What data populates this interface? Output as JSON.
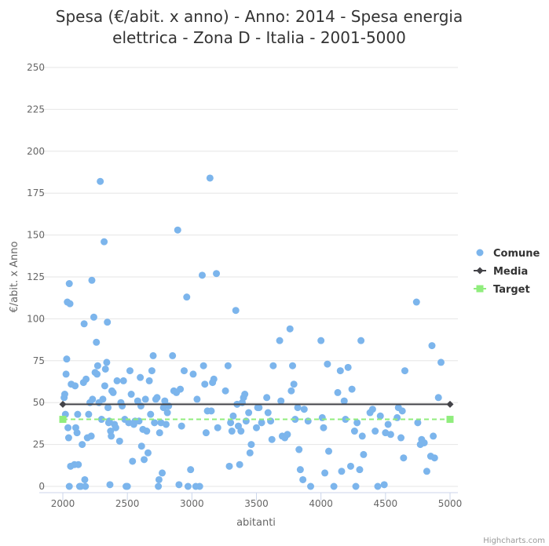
{
  "chart_data": {
    "type": "scatter",
    "title": "Spesa (€/abit. x anno) - Anno: 2014 - Spesa energia elettrica - Zona D - Italia - 2001-5000",
    "x_label": "abitanti",
    "y_label": "€/abit. x Anno",
    "credits": "Highcharts.com",
    "xlim": [
      2000,
      5000
    ],
    "xticks": [
      2000,
      2500,
      3000,
      3500,
      4000,
      4500,
      5000
    ],
    "ylim": [
      0,
      250
    ],
    "yticks": [
      0,
      25,
      50,
      75,
      100,
      125,
      150,
      175,
      200,
      225,
      250
    ],
    "grid": true,
    "legend": "right",
    "series": [
      {
        "name": "Comune",
        "type": "scatter",
        "marker": "circle",
        "color": "#7cb5ec",
        "x": [
          2010,
          2015,
          2020,
          2025,
          2030,
          2035,
          2040,
          2045,
          2050,
          2055,
          2060,
          2065,
          2050,
          2090,
          2095,
          2100,
          2110,
          2115,
          2120,
          2130,
          2140,
          2150,
          2160,
          2165,
          2170,
          2175,
          2180,
          2190,
          2200,
          2210,
          2220,
          2225,
          2230,
          2240,
          2250,
          2260,
          2265,
          2270,
          2280,
          2290,
          2300,
          2310,
          2320,
          2325,
          2330,
          2340,
          2345,
          2350,
          2355,
          2360,
          2365,
          2370,
          2375,
          2380,
          2390,
          2400,
          2410,
          2420,
          2440,
          2450,
          2460,
          2470,
          2480,
          2490,
          2500,
          2510,
          2520,
          2530,
          2540,
          2550,
          2560,
          2580,
          2590,
          2600,
          2605,
          2610,
          2620,
          2630,
          2640,
          2650,
          2660,
          2670,
          2680,
          2690,
          2700,
          2710,
          2720,
          2730,
          2740,
          2745,
          2750,
          2760,
          2770,
          2780,
          2790,
          2800,
          2810,
          2820,
          2850,
          2860,
          2880,
          2890,
          2900,
          2910,
          2920,
          2940,
          2960,
          2970,
          2990,
          3010,
          3030,
          3040,
          3060,
          3080,
          3090,
          3100,
          3110,
          3120,
          3140,
          3150,
          3160,
          3170,
          3190,
          3200,
          3260,
          3280,
          3290,
          3300,
          3310,
          3320,
          3340,
          3350,
          3360,
          3370,
          3380,
          3390,
          3400,
          3410,
          3420,
          3440,
          3450,
          3460,
          3500,
          3510,
          3520,
          3540,
          3580,
          3590,
          3610,
          3620,
          3630,
          3680,
          3690,
          3700,
          3720,
          3740,
          3760,
          3770,
          3780,
          3790,
          3800,
          3820,
          3830,
          3840,
          3860,
          3870,
          3900,
          3920,
          4000,
          4010,
          4020,
          4030,
          4050,
          4060,
          4100,
          4130,
          4150,
          4160,
          4180,
          4190,
          4210,
          4230,
          4240,
          4260,
          4270,
          4280,
          4300,
          4310,
          4320,
          4330,
          4380,
          4400,
          4420,
          4440,
          4460,
          4490,
          4500,
          4520,
          4540,
          4590,
          4600,
          4620,
          4630,
          4640,
          4650,
          4740,
          4750,
          4770,
          4780,
          4800,
          4820,
          4850,
          4860,
          4870,
          4880,
          4910,
          4930
        ],
        "values": [
          53,
          55,
          43,
          67,
          76,
          110,
          35,
          29,
          121,
          109,
          12,
          61,
          0,
          13,
          60,
          35,
          32,
          43,
          13,
          0,
          0,
          25,
          62,
          97,
          4,
          0,
          64,
          29,
          43,
          50,
          30,
          123,
          52,
          101,
          68,
          86,
          67,
          72,
          50,
          182,
          40,
          52,
          146,
          60,
          70,
          74,
          98,
          47,
          38,
          39,
          1,
          33,
          30,
          57,
          56,
          37,
          35,
          63,
          27,
          50,
          48,
          63,
          40,
          0,
          0,
          38,
          69,
          55,
          15,
          37,
          39,
          51,
          39,
          65,
          48,
          24,
          34,
          16,
          52,
          33,
          20,
          63,
          43,
          69,
          78,
          38,
          52,
          53,
          0,
          4,
          32,
          38,
          8,
          47,
          51,
          37,
          44,
          48,
          78,
          57,
          56,
          153,
          1,
          58,
          36,
          69,
          113,
          0,
          10,
          67,
          0,
          52,
          0,
          126,
          72,
          61,
          32,
          45,
          184,
          45,
          62,
          64,
          127,
          35,
          57,
          72,
          12,
          38,
          33,
          42,
          105,
          49,
          36,
          13,
          33,
          50,
          53,
          55,
          39,
          44,
          20,
          25,
          35,
          47,
          47,
          38,
          53,
          44,
          39,
          28,
          72,
          87,
          51,
          30,
          29,
          31,
          94,
          57,
          72,
          61,
          40,
          47,
          22,
          10,
          4,
          46,
          39,
          0,
          87,
          41,
          35,
          8,
          73,
          21,
          0,
          56,
          69,
          9,
          51,
          40,
          71,
          12,
          58,
          33,
          0,
          38,
          10,
          87,
          30,
          19,
          44,
          46,
          33,
          0,
          42,
          1,
          32,
          37,
          31,
          41,
          47,
          29,
          45,
          17,
          69,
          110,
          38,
          25,
          28,
          26,
          9,
          18,
          84,
          30,
          17,
          53,
          74
        ]
      },
      {
        "name": "Media",
        "type": "line",
        "marker": "diamond",
        "color": "#434348",
        "x": [
          2000,
          5000
        ],
        "values": [
          49,
          49
        ]
      },
      {
        "name": "Target",
        "type": "line",
        "marker": "square",
        "dashed": true,
        "color": "#90ed7d",
        "x": [
          2000,
          5000
        ],
        "values": [
          40,
          40
        ]
      }
    ]
  }
}
